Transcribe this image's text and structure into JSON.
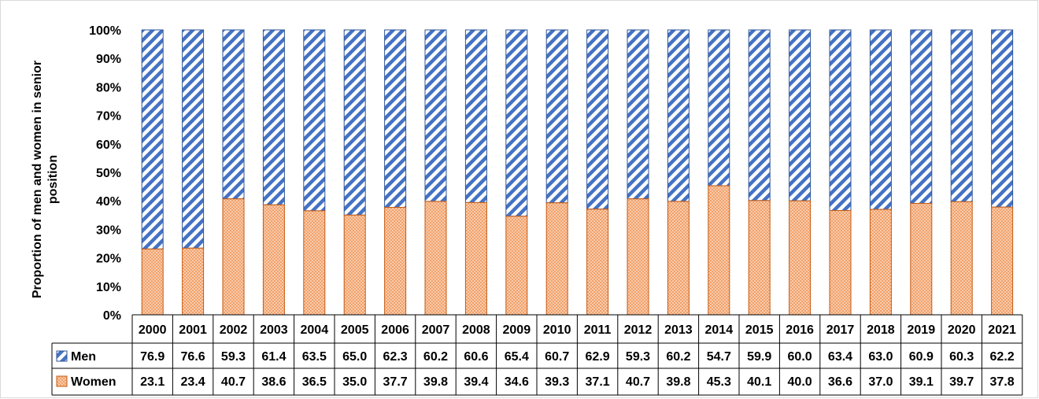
{
  "chart_data": {
    "type": "bar",
    "stacked": true,
    "percent_stacked": true,
    "categories": [
      "2000",
      "2001",
      "2002",
      "2003",
      "2004",
      "2005",
      "2006",
      "2007",
      "2008",
      "2009",
      "2010",
      "2011",
      "2012",
      "2013",
      "2014",
      "2015",
      "2016",
      "2017",
      "2018",
      "2019",
      "2020",
      "2021"
    ],
    "series": [
      {
        "name": "Men",
        "values": [
          76.9,
          76.6,
          59.3,
          61.4,
          63.5,
          65.0,
          62.3,
          60.2,
          60.6,
          65.4,
          60.7,
          62.9,
          59.3,
          60.2,
          54.7,
          59.9,
          60.0,
          63.4,
          63.0,
          60.9,
          60.3,
          62.2
        ],
        "value_labels": [
          "76.9",
          "76.6",
          "59.3",
          "61.4",
          "63.5",
          "65.0",
          "62.3",
          "60.2",
          "60.6",
          "65.4",
          "60.7",
          "62.9",
          "59.3",
          "60.2",
          "54.7",
          "59.9",
          "60.0",
          "63.4",
          "63.0",
          "60.9",
          "60.3",
          "62.2"
        ],
        "fill": "blue-white diagonal stripes",
        "color": "#4472C4"
      },
      {
        "name": "Women",
        "values": [
          23.1,
          23.4,
          40.7,
          38.6,
          36.5,
          35.0,
          37.7,
          39.8,
          39.4,
          34.6,
          39.3,
          37.1,
          40.7,
          39.8,
          45.3,
          40.1,
          40.0,
          36.6,
          37.0,
          39.1,
          39.7,
          37.8
        ],
        "value_labels": [
          "23.1",
          "23.4",
          "40.7",
          "38.6",
          "36.5",
          "35.0",
          "37.7",
          "39.8",
          "39.4",
          "34.6",
          "39.3",
          "37.1",
          "40.7",
          "39.8",
          "45.3",
          "40.1",
          "40.0",
          "36.6",
          "37.0",
          "39.1",
          "39.7",
          "37.8"
        ],
        "fill": "orange checkered",
        "color": "#ED7D31"
      }
    ],
    "ylabel": "Proportion of men and women in senior position",
    "xlabel": "",
    "ylim": [
      0,
      100
    ],
    "yticks": [
      "0%",
      "10%",
      "20%",
      "30%",
      "40%",
      "50%",
      "60%",
      "70%",
      "80%",
      "90%",
      "100%"
    ],
    "grid": false,
    "legend": "data table below chart",
    "data_table": true
  }
}
